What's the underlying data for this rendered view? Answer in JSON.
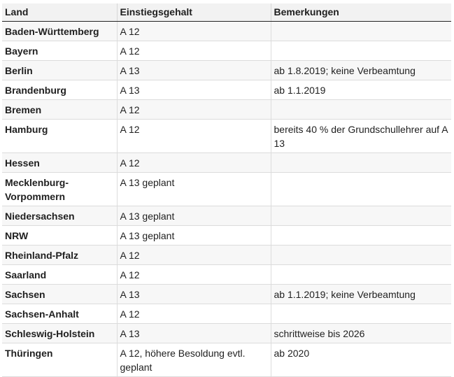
{
  "table": {
    "headers": {
      "land": "Land",
      "gehalt": "Einstiegsgehalt",
      "bemerkungen": "Bemerkungen"
    },
    "rows": [
      {
        "land": "Baden-Württemberg",
        "gehalt": "A 12",
        "bemerkungen": ""
      },
      {
        "land": "Bayern",
        "gehalt": "A 12",
        "bemerkungen": ""
      },
      {
        "land": "Berlin",
        "gehalt": "A 13",
        "bemerkungen": "ab 1.8.2019; keine Verbeamtung"
      },
      {
        "land": "Brandenburg",
        "gehalt": "A 13",
        "bemerkungen": "ab 1.1.2019"
      },
      {
        "land": "Bremen",
        "gehalt": "A 12",
        "bemerkungen": ""
      },
      {
        "land": "Hamburg",
        "gehalt": "A 12",
        "bemerkungen": "bereits 40 % der Grundschullehrer auf A 13"
      },
      {
        "land": "Hessen",
        "gehalt": "A 12",
        "bemerkungen": ""
      },
      {
        "land": "Mecklenburg-Vorpommern",
        "gehalt": "A 13 geplant",
        "bemerkungen": ""
      },
      {
        "land": "Niedersachsen",
        "gehalt": "A 13 geplant",
        "bemerkungen": ""
      },
      {
        "land": "NRW",
        "gehalt": "A 13 geplant",
        "bemerkungen": ""
      },
      {
        "land": "Rheinland-Pfalz",
        "gehalt": "A 12",
        "bemerkungen": ""
      },
      {
        "land": "Saarland",
        "gehalt": "A 12",
        "bemerkungen": ""
      },
      {
        "land": "Sachsen",
        "gehalt": "A 13",
        "bemerkungen": "ab 1.1.2019; keine Verbeamtung"
      },
      {
        "land": "Sachsen-Anhalt",
        "gehalt": "A 12",
        "bemerkungen": ""
      },
      {
        "land": "Schleswig-Holstein",
        "gehalt": "A 13",
        "bemerkungen": "schrittweise bis 2026"
      },
      {
        "land": "Thüringen",
        "gehalt": "A 12, höhere Besoldung evtl. geplant",
        "bemerkungen": "ab 2020"
      }
    ]
  }
}
